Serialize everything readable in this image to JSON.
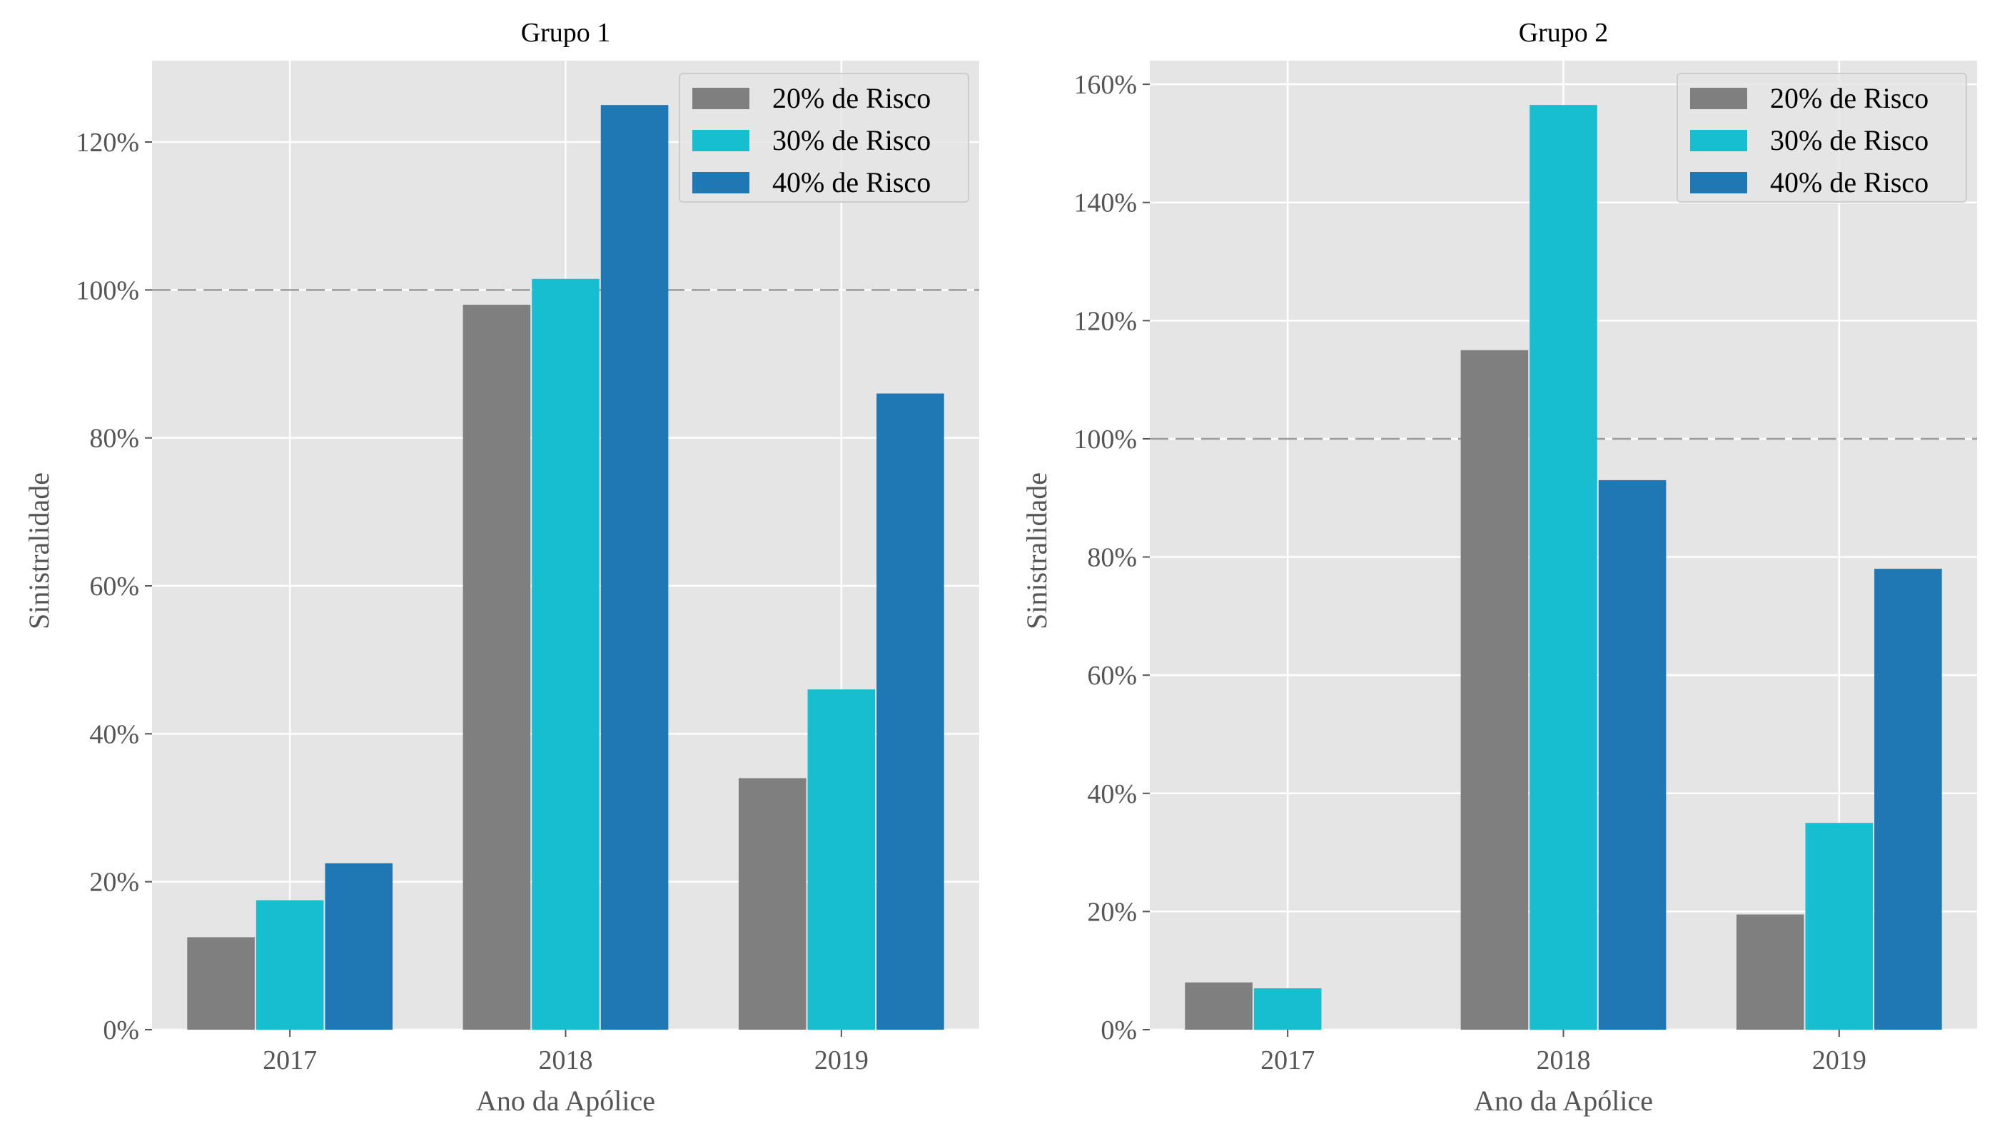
{
  "colors": {
    "panel_background": "#e5e5e5",
    "grid": "#ffffff",
    "reference_line": "#999999",
    "tick_text": "#555555"
  },
  "chart_data": [
    {
      "type": "bar",
      "title": "Grupo 1",
      "xlabel": "Ano da Apólice",
      "ylabel": "Sinistralidade",
      "categories": [
        "2017",
        "2018",
        "2019"
      ],
      "ylim": [
        0,
        131
      ],
      "yticks": [
        0,
        20,
        40,
        60,
        80,
        100,
        120
      ],
      "ytick_labels": [
        "0%",
        "20%",
        "40%",
        "60%",
        "80%",
        "100%",
        "120%"
      ],
      "reference_line": 100,
      "grid": true,
      "legend_position": "top-right",
      "series": [
        {
          "name": "20% de Risco",
          "color": "#7f7f7f",
          "values": [
            12.5,
            98.0,
            34.0
          ]
        },
        {
          "name": "30% de Risco",
          "color": "#17becf",
          "values": [
            17.5,
            101.5,
            46.0
          ]
        },
        {
          "name": "40% de Risco",
          "color": "#1f77b4",
          "values": [
            22.5,
            125.0,
            86.0
          ]
        }
      ]
    },
    {
      "type": "bar",
      "title": "Grupo 2",
      "xlabel": "Ano da Apólice",
      "ylabel": "Sinistralidade",
      "categories": [
        "2017",
        "2018",
        "2019"
      ],
      "ylim": [
        0,
        164
      ],
      "yticks": [
        0,
        20,
        40,
        60,
        80,
        100,
        120,
        140,
        160
      ],
      "ytick_labels": [
        "0%",
        "20%",
        "40%",
        "60%",
        "80%",
        "100%",
        "120%",
        "140%",
        "160%"
      ],
      "reference_line": 100,
      "grid": true,
      "legend_position": "top-right",
      "series": [
        {
          "name": "20% de Risco",
          "color": "#7f7f7f",
          "values": [
            8.0,
            115.0,
            19.5
          ]
        },
        {
          "name": "30% de Risco",
          "color": "#17becf",
          "values": [
            7.0,
            156.5,
            35.0
          ]
        },
        {
          "name": "40% de Risco",
          "color": "#1f77b4",
          "values": [
            0,
            93.0,
            78.0
          ]
        }
      ]
    }
  ]
}
